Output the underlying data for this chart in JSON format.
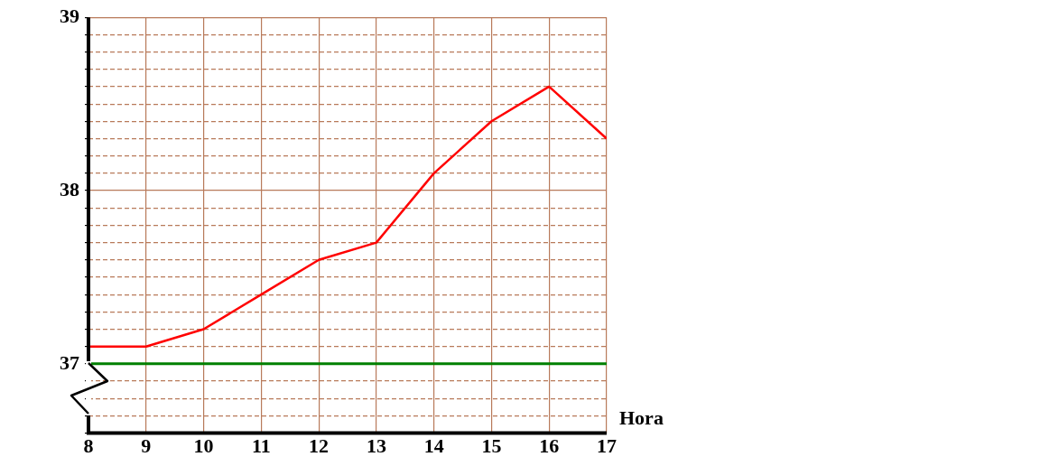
{
  "chart_data": {
    "type": "line",
    "xlabel": "Hora",
    "x": [
      8,
      9,
      10,
      11,
      12,
      13,
      14,
      15,
      16,
      17
    ],
    "series": [
      {
        "color": "#ff0000",
        "values": [
          37.1,
          37.1,
          37.2,
          37.4,
          37.6,
          37.7,
          38.1,
          38.4,
          38.6,
          38.3
        ]
      }
    ],
    "xlim": [
      8,
      17
    ],
    "xticks": [
      8,
      9,
      10,
      11,
      12,
      13,
      14,
      15,
      16,
      17
    ],
    "ylim": [
      36.6,
      39
    ],
    "yticks": [
      {
        "value": 36.6,
        "label": null
      },
      {
        "value": 36.7,
        "label": null
      },
      {
        "value": 36.8,
        "label": null
      },
      {
        "value": 36.9,
        "label": null
      },
      37,
      {
        "value": 37.1,
        "label": null
      },
      {
        "value": 37.2,
        "label": null
      },
      {
        "value": 37.3,
        "label": null
      },
      {
        "value": 37.4,
        "label": null
      },
      {
        "value": 37.5,
        "label": null
      },
      {
        "value": 37.6,
        "label": null
      },
      {
        "value": 37.7,
        "label": null
      },
      {
        "value": 37.8,
        "label": null
      },
      {
        "value": 37.9,
        "label": null
      },
      38,
      {
        "value": 38.1,
        "label": null
      },
      {
        "value": 38.2,
        "label": null
      },
      {
        "value": 38.3,
        "label": null
      },
      {
        "value": 38.4,
        "label": null
      },
      {
        "value": 38.5,
        "label": null
      },
      {
        "value": 38.6,
        "label": null
      },
      {
        "value": 38.7,
        "label": null
      },
      {
        "value": 38.8,
        "label": null
      },
      {
        "value": 38.9,
        "label": null
      },
      39
    ],
    "ref_lines": [
      {
        "axis": "y",
        "value": 37,
        "color": "#008000",
        "line_style": "solid"
      }
    ],
    "grid": true,
    "legend": false,
    "marker": "none",
    "line_style": "solid"
  }
}
